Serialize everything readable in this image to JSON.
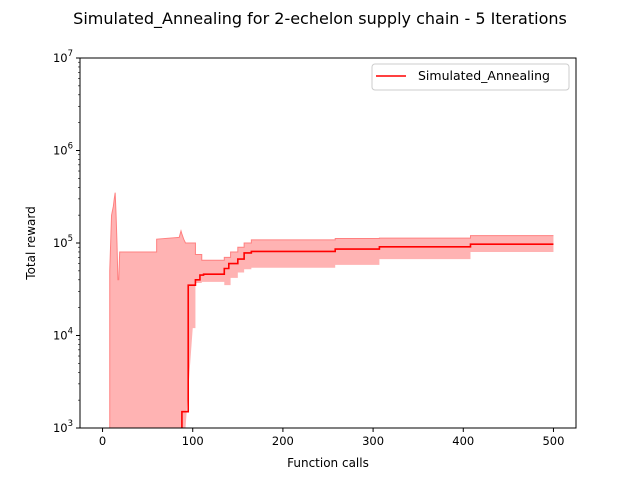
{
  "chart_data": {
    "type": "line",
    "title": "Simulated_Annealing for 2-echelon supply chain - 5 Iterations",
    "xlabel": "Function calls",
    "ylabel": "Total reward",
    "xlim": [
      -25,
      525
    ],
    "ylim": [
      1000,
      10000000
    ],
    "yscale": "log",
    "grid": false,
    "legend": {
      "placement": "top-right"
    },
    "colors": {
      "line": "#ff0000",
      "band": "#ffb3b3",
      "band_edge": "#ff8080"
    },
    "x_ticks": [
      {
        "value": 0,
        "label": "0"
      },
      {
        "value": 100,
        "label": "100"
      },
      {
        "value": 200,
        "label": "200"
      },
      {
        "value": 300,
        "label": "300"
      },
      {
        "value": 400,
        "label": "400"
      },
      {
        "value": 500,
        "label": "500"
      }
    ],
    "y_ticks": [
      {
        "value": 1000,
        "base": "10",
        "exp": "3"
      },
      {
        "value": 10000,
        "base": "10",
        "exp": "4"
      },
      {
        "value": 100000,
        "base": "10",
        "exp": "5"
      },
      {
        "value": 1000000,
        "base": "10",
        "exp": "6"
      },
      {
        "value": 10000000,
        "base": "10",
        "exp": "7"
      }
    ],
    "series": [
      {
        "name": "Simulated_Annealing",
        "x": [
          88,
          88,
          95,
          95,
          103,
          103,
          108,
          108,
          112,
          112,
          135,
          135,
          140,
          140,
          150,
          150,
          157,
          157,
          165,
          165,
          258,
          258,
          307,
          307,
          408,
          408,
          500
        ],
        "y": [
          1500,
          1500,
          1500,
          35000,
          35000,
          40000,
          40000,
          45000,
          45000,
          46000,
          46000,
          53000,
          53000,
          60000,
          60000,
          67000,
          67000,
          78000,
          78000,
          81000,
          81000,
          86000,
          86000,
          91000,
          91000,
          97000,
          97000
        ]
      }
    ],
    "band": {
      "x": [
        8,
        8,
        10,
        12,
        13,
        14,
        15,
        16,
        17,
        18,
        19,
        20,
        60,
        60,
        85,
        87,
        88,
        90,
        92,
        100,
        103,
        103,
        110,
        110,
        135,
        135,
        142,
        142,
        150,
        150,
        157,
        157,
        165,
        165,
        258,
        258,
        307,
        307,
        408,
        408,
        500
      ],
      "upper": [
        1000,
        50000,
        200000,
        250000,
        300000,
        350000,
        200000,
        100000,
        40000,
        40000,
        80000,
        80000,
        80000,
        110000,
        115000,
        135000,
        125000,
        110000,
        100000,
        100000,
        100000,
        75000,
        75000,
        65000,
        65000,
        70000,
        70000,
        80000,
        80000,
        90000,
        90000,
        100000,
        100000,
        108000,
        108000,
        112000,
        112000,
        113000,
        113000,
        120000,
        120000
      ],
      "lower": [
        1000,
        1000,
        1000,
        1000,
        1000,
        1000,
        1000,
        1000,
        1000,
        1000,
        1000,
        1000,
        1000,
        1000,
        1000,
        1000,
        1000,
        1000,
        1000,
        12000,
        12000,
        37000,
        37000,
        38000,
        38000,
        35000,
        35000,
        42000,
        42000,
        48000,
        48000,
        52000,
        52000,
        54000,
        54000,
        58000,
        58000,
        67000,
        67000,
        80000,
        80000
      ]
    }
  }
}
